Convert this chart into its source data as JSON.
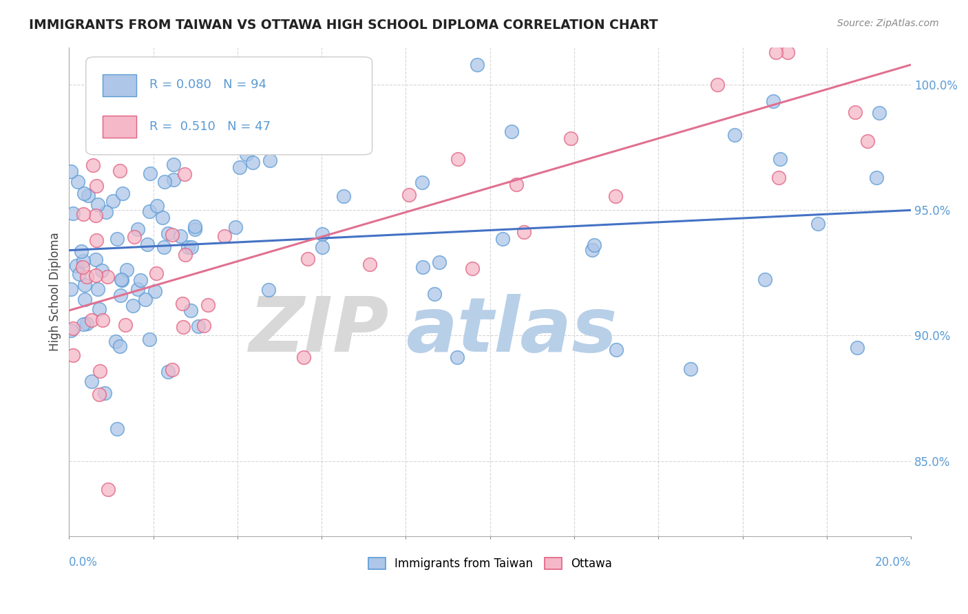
{
  "title": "IMMIGRANTS FROM TAIWAN VS OTTAWA HIGH SCHOOL DIPLOMA CORRELATION CHART",
  "source": "Source: ZipAtlas.com",
  "ylabel": "High School Diploma",
  "legend_labels": [
    "Immigrants from Taiwan",
    "Ottawa"
  ],
  "R_blue": 0.08,
  "N_blue": 94,
  "R_pink": 0.51,
  "N_pink": 47,
  "blue_color": "#aec6e8",
  "blue_edge_color": "#5b9bd5",
  "blue_line_color": "#4472c4",
  "pink_color": "#f4b8c8",
  "pink_edge_color": "#e06080",
  "pink_line_color": "#e07090",
  "x_min": 0.0,
  "x_max": 20.0,
  "y_min": 82.0,
  "y_max": 101.5,
  "ytick_vals": [
    85.0,
    90.0,
    95.0,
    100.0
  ],
  "blue_trend_y0": 93.4,
  "blue_trend_y1": 95.0,
  "pink_trend_y0": 91.0,
  "pink_trend_y1": 100.8,
  "watermark_zip_color": "#d8d8d8",
  "watermark_atlas_color": "#b8cfe8"
}
